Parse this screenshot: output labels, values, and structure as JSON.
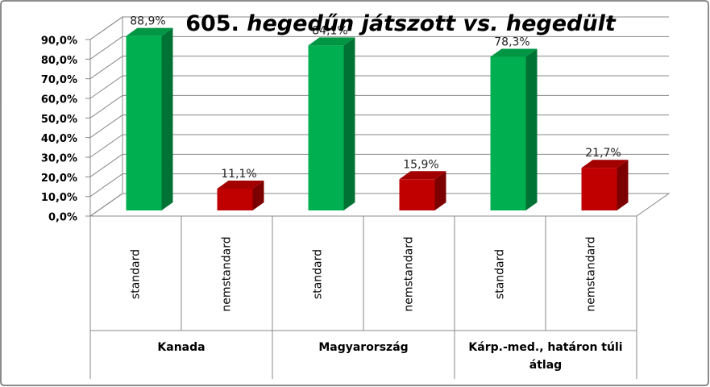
{
  "chart_data": {
    "type": "bar3d",
    "title": "605. hegedűn játszott vs. hegedült",
    "categories": [
      "standard",
      "nemstandard",
      "standard",
      "nemstandard",
      "standard",
      "nemstandard"
    ],
    "groups": [
      "Kanada",
      "Magyarország",
      "Kárp.-med., határon túli átlag"
    ],
    "values": [
      88.9,
      11.1,
      84.1,
      15.9,
      78.3,
      21.7
    ],
    "value_labels": [
      "88,9%",
      "11,1%",
      "84,1%",
      "15,9%",
      "78,3%",
      "21,7%"
    ],
    "colors": [
      "#00b050",
      "#c00000",
      "#00b050",
      "#c00000",
      "#00b050",
      "#c00000"
    ],
    "ylim": [
      0,
      90
    ],
    "yticks": [
      {
        "value": 0,
        "label": "0,0%"
      },
      {
        "value": 10,
        "label": "10,0%"
      },
      {
        "value": 20,
        "label": "20,0%"
      },
      {
        "value": 30,
        "label": "30,0%"
      },
      {
        "value": 40,
        "label": "40,0%"
      },
      {
        "value": 50,
        "label": "50,0%"
      },
      {
        "value": 60,
        "label": "60,0%"
      },
      {
        "value": 70,
        "label": "70,0%"
      },
      {
        "value": 80,
        "label": "80,0%"
      },
      {
        "value": 90,
        "label": "90,0%"
      }
    ],
    "grid": true
  }
}
